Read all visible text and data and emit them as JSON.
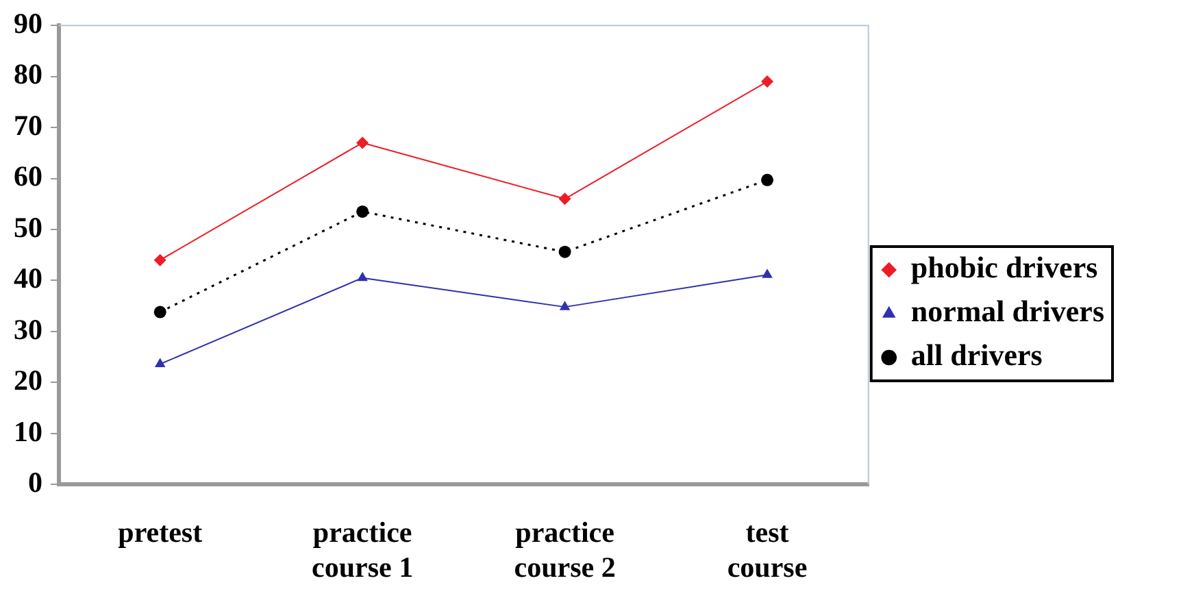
{
  "chart_data": {
    "type": "line",
    "categories": [
      "pretest",
      "practice course 1",
      "practice course 2",
      "test course"
    ],
    "series": [
      {
        "name": "phobic drivers",
        "color": "#ee1c24",
        "values": [
          44,
          67,
          56,
          79
        ],
        "marker": "diamond",
        "line_style": "solid"
      },
      {
        "name": "normal drivers",
        "color": "#3030b0",
        "values": [
          23.6,
          40.5,
          34.8,
          41.1
        ],
        "marker": "triangle",
        "line_style": "solid"
      },
      {
        "name": "all drivers",
        "color": "#000000",
        "values": [
          33.8,
          53.5,
          45.6,
          59.7
        ],
        "marker": "circle",
        "line_style": "dotted"
      }
    ],
    "ylim": [
      0,
      90
    ],
    "yticks": [
      0,
      10,
      20,
      30,
      40,
      50,
      60,
      70,
      80,
      90
    ],
    "grid": false,
    "legend": "right"
  }
}
